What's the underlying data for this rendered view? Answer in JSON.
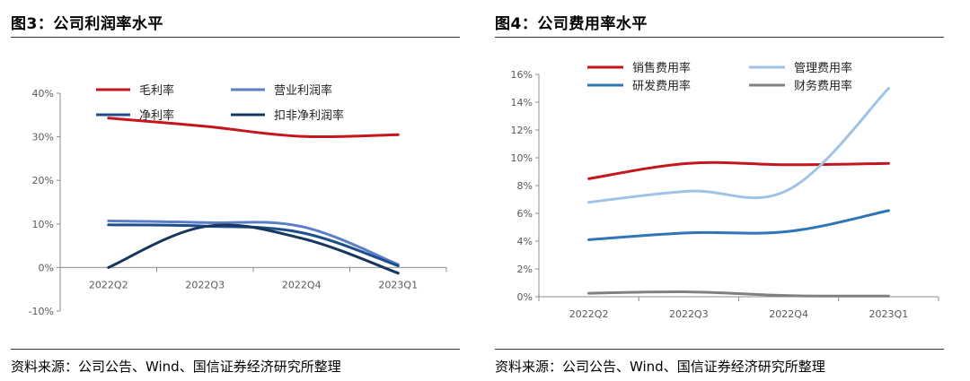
{
  "panels": [
    {
      "title": "图3：公司利润率水平",
      "source": "资料来源：公司公告、Wind、国信证券经济研究所整理"
    },
    {
      "title": "图4：公司费用率水平",
      "source": "资料来源：公司公告、Wind、国信证券经济研究所整理"
    }
  ],
  "chart_data": [
    {
      "type": "line",
      "categories": [
        "2022Q2",
        "2022Q3",
        "2022Q4",
        "2023Q1"
      ],
      "ylim": [
        -10,
        40
      ],
      "yticks": [
        -10,
        0,
        10,
        20,
        30,
        40
      ],
      "yticklabels": [
        "-10%",
        "0%",
        "10%",
        "20%",
        "30%",
        "40%"
      ],
      "legend_position": "top",
      "series": [
        {
          "name": "毛利率",
          "color": "#C4161C",
          "values": [
            34.3,
            32.4,
            30.1,
            30.5
          ]
        },
        {
          "name": "营业利润率",
          "color": "#5B7FC6",
          "values": [
            10.7,
            10.3,
            9.4,
            0.7
          ]
        },
        {
          "name": "净利率",
          "color": "#1E4E8C",
          "values": [
            9.8,
            9.5,
            8.0,
            0.4
          ]
        },
        {
          "name": "扣非净利润率",
          "color": "#17375E",
          "values": [
            0.0,
            9.4,
            6.7,
            -1.3
          ]
        }
      ]
    },
    {
      "type": "line",
      "categories": [
        "2022Q2",
        "2022Q3",
        "2022Q4",
        "2023Q1"
      ],
      "ylim": [
        0,
        16
      ],
      "yticks": [
        0,
        2,
        4,
        6,
        8,
        10,
        12,
        14,
        16
      ],
      "yticklabels": [
        "0%",
        "2%",
        "4%",
        "6%",
        "8%",
        "10%",
        "12%",
        "14%",
        "16%"
      ],
      "legend_position": "top",
      "series": [
        {
          "name": "销售费用率",
          "color": "#C4161C",
          "values": [
            8.5,
            9.6,
            9.5,
            9.6
          ]
        },
        {
          "name": "管理费用率",
          "color": "#9DC3E6",
          "values": [
            6.8,
            7.6,
            7.7,
            15.0
          ]
        },
        {
          "name": "研发费用率",
          "color": "#2E75B6",
          "values": [
            4.1,
            4.6,
            4.7,
            6.2
          ]
        },
        {
          "name": "财务费用率",
          "color": "#808080",
          "values": [
            0.25,
            0.35,
            0.08,
            0.05
          ]
        }
      ]
    }
  ]
}
